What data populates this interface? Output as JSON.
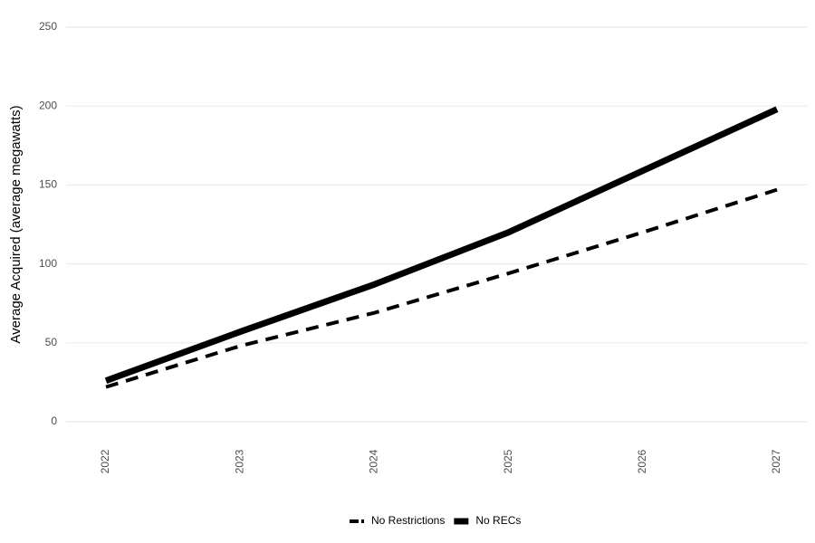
{
  "chart_data": {
    "type": "line",
    "y_label": "Average Acquired (average megawatts)",
    "categories": [
      "2022",
      "2023",
      "2024",
      "2025",
      "2026",
      "2027"
    ],
    "series": [
      {
        "name": "No Restrictions",
        "color": "#000000",
        "dash": "dashed",
        "values": [
          22,
          48,
          69,
          94,
          120,
          147
        ]
      },
      {
        "name": "No RECs",
        "color": "#000000",
        "dash": "solid",
        "values": [
          26,
          57,
          87,
          120,
          159,
          198
        ]
      }
    ],
    "ylim": [
      0,
      250
    ],
    "yticks": [
      0,
      50,
      100,
      150,
      200,
      250
    ],
    "grid": true,
    "legend": "bottom"
  }
}
